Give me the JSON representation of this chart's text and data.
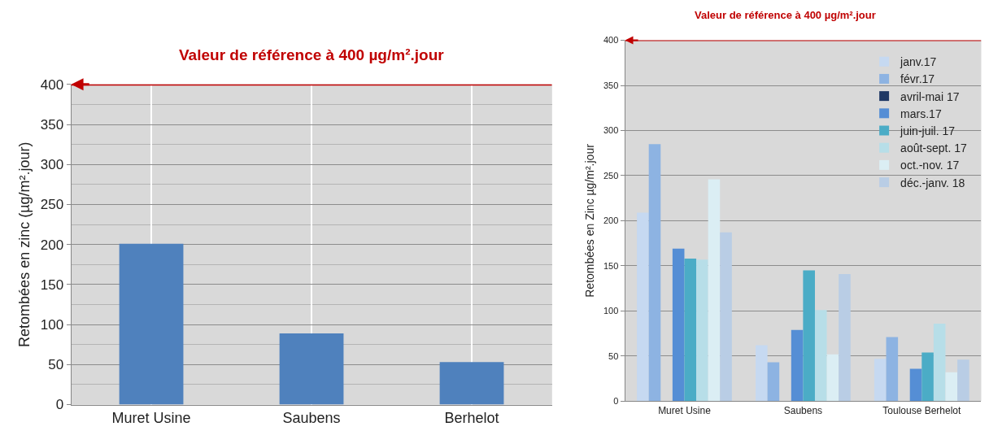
{
  "chart_data": [
    {
      "type": "bar",
      "ylabel": "Retombées en zinc (µg/m².jour)",
      "categories": [
        "Muret Usine",
        "Saubens",
        "Berhelot"
      ],
      "series": [
        {
          "color": "#4f81bd",
          "values": [
            201,
            89,
            53
          ]
        }
      ],
      "ylim": [
        0,
        400
      ],
      "yticks": [
        0,
        50,
        100,
        150,
        200,
        250,
        300,
        350,
        400
      ],
      "grid": true,
      "legend": false,
      "ref_lines": [
        {
          "axis": "y",
          "value": 400,
          "label": "Valeur de référence à 400 µg/m².jour",
          "color": "#c00000"
        }
      ]
    },
    {
      "type": "bar",
      "ylabel": "Retombées en Zinc µg/m².jour",
      "categories": [
        "Muret Usine",
        "Saubens",
        "Toulouse Berhelot"
      ],
      "series": [
        {
          "name": "janv.17",
          "color": "#c6d9f1",
          "values": [
            209,
            62,
            47
          ]
        },
        {
          "name": "févr.17",
          "color": "#8db3e2",
          "values": [
            285,
            43,
            71
          ]
        },
        {
          "name": "avril-mai 17",
          "color": "#1f3864",
          "values": [
            null,
            null,
            null
          ]
        },
        {
          "name": "mars.17",
          "color": "#558ed5",
          "values": [
            169,
            79,
            36
          ]
        },
        {
          "name": "juin-juil. 17",
          "color": "#4bacc6",
          "values": [
            158,
            145,
            54
          ]
        },
        {
          "name": "août-sept. 17",
          "color": "#b7dee8",
          "values": [
            157,
            101,
            86
          ]
        },
        {
          "name": "oct.-nov. 17",
          "color": "#dbeef4",
          "values": [
            246,
            52,
            32
          ]
        },
        {
          "name": "déc.-janv. 18",
          "color": "#b9cde5",
          "values": [
            187,
            141,
            46
          ]
        }
      ],
      "ylim": [
        0,
        400
      ],
      "yticks": [
        0,
        50,
        100,
        150,
        200,
        250,
        300,
        350,
        400
      ],
      "grid": "y",
      "legend": "top right",
      "ref_lines": [
        {
          "axis": "y",
          "value": 400,
          "label": "Valeur de référence à 400 µg/m².jour",
          "color": "#c00000"
        }
      ]
    }
  ]
}
